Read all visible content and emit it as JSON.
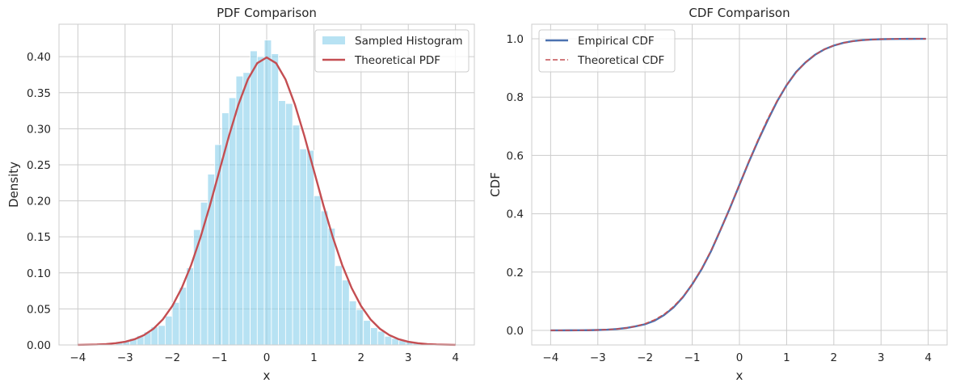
{
  "colors": {
    "histogram": "#87CEEB",
    "theoretical_pdf": "#C44E52",
    "empirical_cdf": "#4C72B0",
    "theoretical_cdf": "#C44E52",
    "grid": "#CCCCCC",
    "axes_edge": "#CCCCCC"
  },
  "chart_data": [
    {
      "type": "bar",
      "title": "PDF Comparison",
      "xlabel": "x",
      "ylabel": "Density",
      "xlim": [
        -4.4,
        4.4
      ],
      "ylim": [
        0,
        0.445
      ],
      "grid": true,
      "legend_position": "upper-right",
      "xticks": [
        -4,
        -3,
        -2,
        -1,
        0,
        1,
        2,
        3,
        4
      ],
      "xtick_labels": [
        "−4",
        "−3",
        "−2",
        "−1",
        "0",
        "1",
        "2",
        "3",
        "4"
      ],
      "yticks": [
        0,
        0.05,
        0.1,
        0.15,
        0.2,
        0.25,
        0.3,
        0.35,
        0.4
      ],
      "ytick_labels": [
        "0.00",
        "0.05",
        "0.10",
        "0.15",
        "0.20",
        "0.25",
        "0.30",
        "0.35",
        "0.40"
      ],
      "series": [
        {
          "name": "Sampled Histogram",
          "kind": "histogram",
          "bin_edges": [
            -3.2,
            -3.05,
            -2.9,
            -2.75,
            -2.6,
            -2.45,
            -2.3,
            -2.15,
            -2.0,
            -1.85,
            -1.7,
            -1.55,
            -1.4,
            -1.25,
            -1.1,
            -0.95,
            -0.8,
            -0.65,
            -0.5,
            -0.35,
            -0.2,
            -0.05,
            0.1,
            0.25,
            0.4,
            0.55,
            0.7,
            0.85,
            1.0,
            1.15,
            1.3,
            1.45,
            1.6,
            1.75,
            1.9,
            2.05,
            2.2,
            2.35,
            2.5,
            2.65,
            2.8,
            2.95,
            3.1,
            3.25,
            3.4,
            3.55
          ],
          "values": [
            0.003,
            0.006,
            0.009,
            0.013,
            0.018,
            0.025,
            0.027,
            0.04,
            0.059,
            0.08,
            0.107,
            0.16,
            0.198,
            0.237,
            0.278,
            0.322,
            0.343,
            0.373,
            0.378,
            0.408,
            0.4,
            0.423,
            0.404,
            0.339,
            0.335,
            0.305,
            0.272,
            0.27,
            0.207,
            0.186,
            0.162,
            0.11,
            0.09,
            0.061,
            0.049,
            0.034,
            0.024,
            0.019,
            0.012,
            0.009,
            0.006,
            0.004,
            0.003,
            0.002,
            0.001
          ]
        },
        {
          "name": "Theoretical PDF",
          "kind": "line",
          "x": [
            -4.0,
            -3.8,
            -3.6,
            -3.4,
            -3.2,
            -3.0,
            -2.8,
            -2.6,
            -2.4,
            -2.2,
            -2.0,
            -1.8,
            -1.6,
            -1.4,
            -1.2,
            -1.0,
            -0.8,
            -0.6,
            -0.4,
            -0.2,
            0.0,
            0.2,
            0.4,
            0.6,
            0.8,
            1.0,
            1.2,
            1.4,
            1.6,
            1.8,
            2.0,
            2.2,
            2.4,
            2.6,
            2.8,
            3.0,
            3.2,
            3.4,
            3.6,
            3.8,
            4.0
          ],
          "y": [
            0.0001,
            0.0003,
            0.0006,
            0.0012,
            0.0024,
            0.0044,
            0.0079,
            0.0136,
            0.0224,
            0.0355,
            0.054,
            0.079,
            0.1109,
            0.1497,
            0.1942,
            0.242,
            0.2897,
            0.3332,
            0.3683,
            0.391,
            0.3989,
            0.391,
            0.3683,
            0.3332,
            0.2897,
            0.242,
            0.1942,
            0.1497,
            0.1109,
            0.079,
            0.054,
            0.0355,
            0.0224,
            0.0136,
            0.0079,
            0.0044,
            0.0024,
            0.0012,
            0.0006,
            0.0003,
            0.0001
          ]
        }
      ]
    },
    {
      "type": "line",
      "title": "CDF Comparison",
      "xlabel": "x",
      "ylabel": "CDF",
      "xlim": [
        -4.4,
        4.4
      ],
      "ylim": [
        -0.05,
        1.05
      ],
      "grid": true,
      "legend_position": "upper-left",
      "xticks": [
        -4,
        -3,
        -2,
        -1,
        0,
        1,
        2,
        3,
        4
      ],
      "xtick_labels": [
        "−4",
        "−3",
        "−2",
        "−1",
        "0",
        "1",
        "2",
        "3",
        "4"
      ],
      "yticks": [
        0,
        0.2,
        0.4,
        0.6,
        0.8,
        1.0
      ],
      "ytick_labels": [
        "0.0",
        "0.2",
        "0.4",
        "0.6",
        "0.8",
        "1.0"
      ],
      "series": [
        {
          "name": "Empirical CDF",
          "x": [
            -4.0,
            -3.8,
            -3.6,
            -3.4,
            -3.2,
            -3.0,
            -2.8,
            -2.6,
            -2.4,
            -2.2,
            -2.0,
            -1.8,
            -1.6,
            -1.4,
            -1.2,
            -1.0,
            -0.8,
            -0.6,
            -0.4,
            -0.2,
            0.0,
            0.2,
            0.4,
            0.6,
            0.8,
            1.0,
            1.2,
            1.4,
            1.6,
            1.8,
            2.0,
            2.2,
            2.4,
            2.6,
            2.8,
            3.0,
            3.2,
            3.4,
            3.6,
            3.8,
            3.95
          ],
          "y": [
            0.0,
            0.0001,
            0.0002,
            0.0003,
            0.0006,
            0.0013,
            0.0026,
            0.0047,
            0.0082,
            0.0139,
            0.021,
            0.033,
            0.052,
            0.078,
            0.113,
            0.158,
            0.21,
            0.272,
            0.345,
            0.42,
            0.499,
            0.578,
            0.652,
            0.721,
            0.786,
            0.841,
            0.886,
            0.919,
            0.945,
            0.964,
            0.977,
            0.986,
            0.992,
            0.9953,
            0.9974,
            0.9987,
            0.9993,
            0.9997,
            0.9998,
            0.9999,
            1.0
          ]
        },
        {
          "name": "Theoretical CDF",
          "style": "dashed",
          "x": [
            -4.0,
            -3.8,
            -3.6,
            -3.4,
            -3.2,
            -3.0,
            -2.8,
            -2.6,
            -2.4,
            -2.2,
            -2.0,
            -1.8,
            -1.6,
            -1.4,
            -1.2,
            -1.0,
            -0.8,
            -0.6,
            -0.4,
            -0.2,
            0.0,
            0.2,
            0.4,
            0.6,
            0.8,
            1.0,
            1.2,
            1.4,
            1.6,
            1.8,
            2.0,
            2.2,
            2.4,
            2.6,
            2.8,
            3.0,
            3.2,
            3.4,
            3.6,
            3.8,
            3.95
          ],
          "y": [
            0.0,
            0.0001,
            0.0002,
            0.0003,
            0.0007,
            0.0013,
            0.0026,
            0.0047,
            0.0082,
            0.0139,
            0.0228,
            0.0359,
            0.0548,
            0.0808,
            0.1151,
            0.1587,
            0.2119,
            0.2743,
            0.3446,
            0.4207,
            0.5,
            0.5793,
            0.6554,
            0.7257,
            0.7881,
            0.8413,
            0.8849,
            0.9192,
            0.9452,
            0.9641,
            0.9772,
            0.9861,
            0.9918,
            0.9953,
            0.9974,
            0.9987,
            0.9993,
            0.9997,
            0.9998,
            0.9999,
            1.0
          ]
        }
      ]
    }
  ]
}
